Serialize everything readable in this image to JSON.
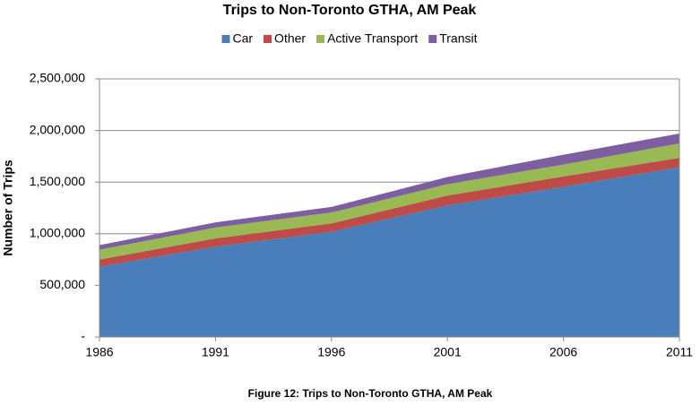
{
  "chart_data": {
    "type": "stacked_area",
    "title": "Trips to Non-Toronto GTHA, AM Peak",
    "y_label": "Number of Trips",
    "caption": "Figure 12: Trips to Non-Toronto GTHA, AM Peak",
    "x": [
      1986,
      1991,
      1996,
      2001,
      2006,
      2011
    ],
    "xlim": [
      1986,
      2011
    ],
    "xticks": [
      1986,
      1991,
      1996,
      2001,
      2006,
      2011
    ],
    "ylim": [
      0,
      2500000
    ],
    "yticks": [
      {
        "value": 0,
        "label": "-"
      },
      {
        "value": 500000,
        "label": "500,000"
      },
      {
        "value": 1000000,
        "label": "1,000,000"
      },
      {
        "value": 1500000,
        "label": "1,500,000"
      },
      {
        "value": 2000000,
        "label": "2,000,000"
      },
      {
        "value": 2500000,
        "label": "2,500,000"
      }
    ],
    "grid": true,
    "legend": "top",
    "series": [
      {
        "name": "Car",
        "color": "#4a7ebb",
        "values": [
          680000,
          875000,
          1020000,
          1275000,
          1455000,
          1645000
        ]
      },
      {
        "name": "Other",
        "color": "#be4b48",
        "values": [
          70000,
          80000,
          80000,
          95000,
          100000,
          90000
        ]
      },
      {
        "name": "Active Transport",
        "color": "#98b954",
        "values": [
          95000,
          105000,
          105000,
          110000,
          115000,
          140000
        ]
      },
      {
        "name": "Transit",
        "color": "#7d5fa0",
        "values": [
          45000,
          50000,
          55000,
          70000,
          95000,
          95000
        ]
      }
    ]
  }
}
